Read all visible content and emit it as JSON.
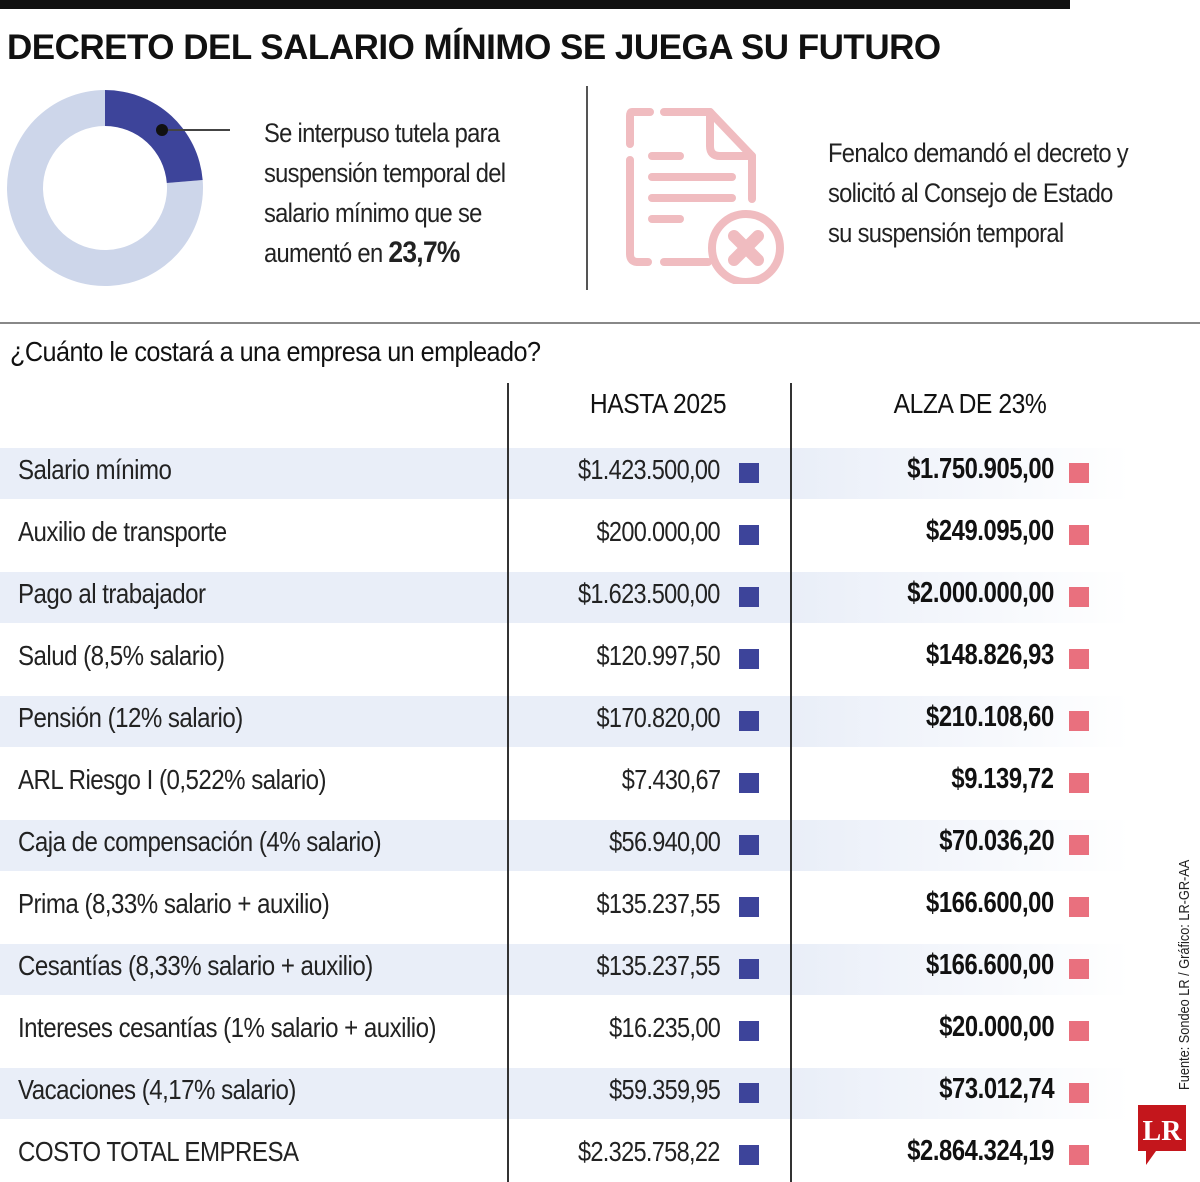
{
  "title": "DECRETO DEL SALARIO MÍNIMO SE JUEGA SU FUTURO",
  "note_left": {
    "lines": [
      "Se interpuso tutela para",
      "suspensión temporal del",
      "salario mínimo que se",
      "aumentó en "
    ],
    "highlight": "23,7%"
  },
  "note_right": {
    "lines": [
      "Fenalco demandó el decreto y",
      "solicitó al Consejo de Estado",
      "su suspensión temporal"
    ],
    "icon": "document-x-icon"
  },
  "question": "¿Cuánto le costará a una empresa un empleado?",
  "colors": {
    "dark_blue": "#3d449a",
    "light_blue": "#cdd6ea",
    "pink": "#e9707e",
    "icon_pink": "#f0bcc0",
    "stripe": "#e9eef8",
    "logo_red": "#c4161c"
  },
  "source": "Fuente: Sondeo LR / Gráfico: LR-GR-AA",
  "logo_text": "LR",
  "chart_data": [
    {
      "type": "pie",
      "variant": "donut",
      "values": [
        23.7,
        76.3
      ],
      "label": "23,7%"
    },
    {
      "type": "table",
      "columns": [
        "",
        "HASTA 2025",
        "ALZA DE 23%"
      ],
      "rows": [
        {
          "label": "Salario mínimo",
          "hasta_2025": "$1.423.500,00",
          "alza": "$1.750.905,00"
        },
        {
          "label": "Auxilio de transporte",
          "hasta_2025": "$200.000,00",
          "alza": "$249.095,00"
        },
        {
          "label": "Pago al trabajador",
          "hasta_2025": "$1.623.500,00",
          "alza": "$2.000.000,00"
        },
        {
          "label": "Salud (8,5% salario)",
          "hasta_2025": "$120.997,50",
          "alza": "$148.826,93"
        },
        {
          "label": "Pensión (12% salario)",
          "hasta_2025": "$170.820,00",
          "alza": "$210.108,60"
        },
        {
          "label": "ARL Riesgo I (0,522% salario)",
          "hasta_2025": "$7.430,67",
          "alza": "$9.139,72"
        },
        {
          "label": "Caja de compensación (4% salario)",
          "hasta_2025": "$56.940,00",
          "alza": "$70.036,20"
        },
        {
          "label": "Prima (8,33% salario + auxilio)",
          "hasta_2025": "$135.237,55",
          "alza": "$166.600,00"
        },
        {
          "label": "Cesantías (8,33% salario + auxilio)",
          "hasta_2025": "$135.237,55",
          "alza": "$166.600,00"
        },
        {
          "label": "Intereses cesantías (1% salario + auxilio)",
          "hasta_2025": "$16.235,00",
          "alza": "$20.000,00"
        },
        {
          "label": "Vacaciones (4,17% salario)",
          "hasta_2025": "$59.359,95",
          "alza": "$73.012,74"
        },
        {
          "label": "COSTO TOTAL EMPRESA",
          "hasta_2025": "$2.325.758,22",
          "alza": "$2.864.324,19"
        }
      ]
    }
  ]
}
